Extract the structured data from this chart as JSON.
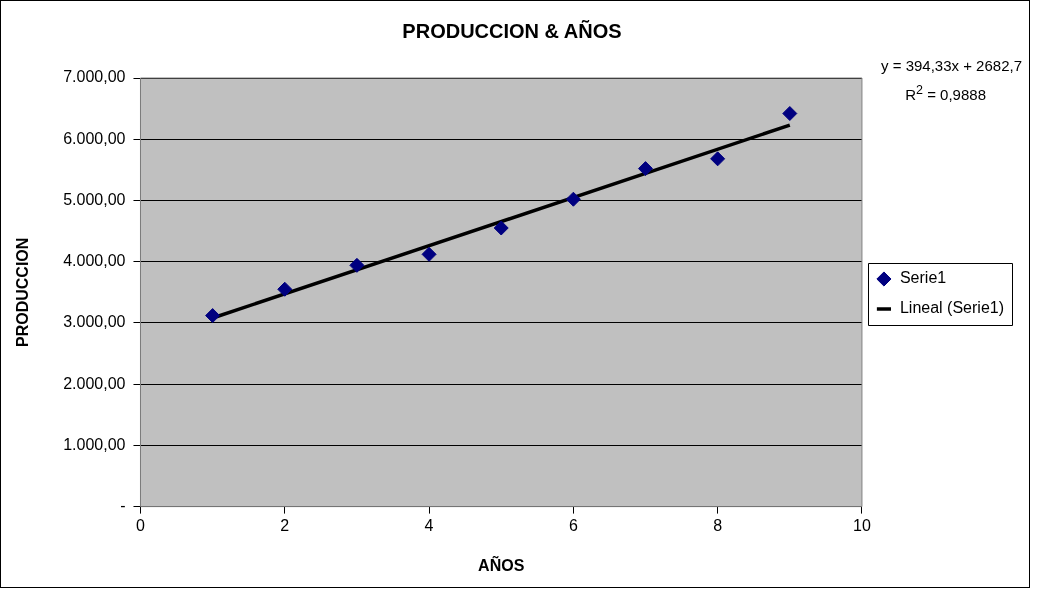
{
  "chart_data": {
    "type": "scatter",
    "title": "PRODUCCION & AÑOS",
    "xlabel": "AÑOS",
    "ylabel": "PRODUCCION",
    "xlim": [
      0,
      10
    ],
    "xticks": [
      0,
      2,
      4,
      6,
      8,
      10
    ],
    "ylim": [
      0,
      7000
    ],
    "yticks": [
      {
        "value": 0,
        "label": "-"
      },
      {
        "value": 1000,
        "label": "1.000,00"
      },
      {
        "value": 2000,
        "label": "2.000,00"
      },
      {
        "value": 3000,
        "label": "3.000,00"
      },
      {
        "value": 4000,
        "label": "4.000,00"
      },
      {
        "value": 5000,
        "label": "5.000,00"
      },
      {
        "value": 6000,
        "label": "6.000,00"
      },
      {
        "value": 7000,
        "label": "7.000,00"
      }
    ],
    "grid": "y",
    "legend": "right",
    "series": [
      {
        "name": "Serie1",
        "marker": "diamond",
        "color": "#000080",
        "x": [
          1,
          2,
          3,
          4,
          5,
          6,
          7,
          8,
          9
        ],
        "values": [
          3120,
          3550,
          3940,
          4120,
          4550,
          5020,
          5520,
          5680,
          6420
        ]
      },
      {
        "name": "Lineal (Serie1)",
        "type": "line",
        "color": "#000000",
        "x": [
          1,
          9
        ],
        "values": [
          3080,
          6230
        ]
      }
    ],
    "annotations": [
      "y = 394,33x + 2682,7",
      "R$^{2}$ = 0,9888"
    ]
  }
}
